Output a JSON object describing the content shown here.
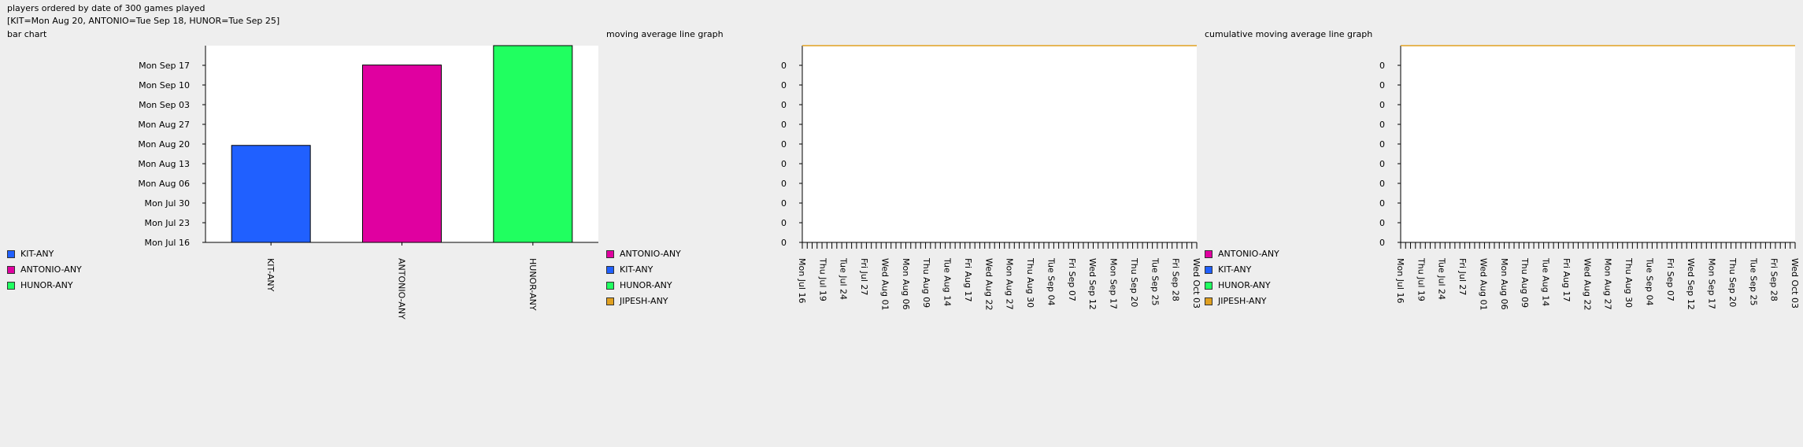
{
  "header": {
    "title": "players ordered by date of 300 games played",
    "subtitle": "[KIT=Mon Aug 20, ANTONIO=Tue Sep 18, HUNOR=Tue Sep 25]"
  },
  "colors": {
    "KIT-ANY": "#2060ff",
    "ANTONIO-ANY": "#e000a0",
    "HUNOR-ANY": "#20ff60",
    "JIPESH-ANY": "#e0a020"
  },
  "chart_data": [
    {
      "type": "bar",
      "title": "bar chart",
      "categories": [
        "KIT-ANY",
        "ANTONIO-ANY",
        "HUNOR-ANY"
      ],
      "values": [
        "2018-08-20",
        "2018-09-18",
        "2018-09-25"
      ],
      "y_ticks": [
        "Mon Jul 16",
        "Mon Jul 23",
        "Mon Jul 30",
        "Mon Aug 06",
        "Mon Aug 13",
        "Mon Aug 20",
        "Mon Aug 27",
        "Mon Sep 03",
        "Mon Sep 10",
        "Mon Sep 17"
      ],
      "ylim": [
        "2018-07-16",
        "2018-09-25"
      ],
      "legend": [
        "KIT-ANY",
        "ANTONIO-ANY",
        "HUNOR-ANY"
      ],
      "legend_placement": "left"
    },
    {
      "type": "line",
      "title": "moving average line graph",
      "y_ticks": [
        "0",
        "0",
        "0",
        "0",
        "0",
        "0",
        "0",
        "0",
        "0",
        "0"
      ],
      "x_ticks": [
        "Mon Jul 16",
        "Thu Jul 19",
        "Tue Jul 24",
        "Fri Jul 27",
        "Wed Aug 01",
        "Mon Aug 06",
        "Thu Aug 09",
        "Tue Aug 14",
        "Fri Aug 17",
        "Wed Aug 22",
        "Mon Aug 27",
        "Thu Aug 30",
        "Tue Sep 04",
        "Fri Sep 07",
        "Wed Sep 12",
        "Mon Sep 17",
        "Thu Sep 20",
        "Tue Sep 25",
        "Fri Sep 28",
        "Wed Oct 03"
      ],
      "series": [
        {
          "name": "ANTONIO-ANY",
          "values": []
        },
        {
          "name": "KIT-ANY",
          "values": []
        },
        {
          "name": "HUNOR-ANY",
          "values": []
        },
        {
          "name": "JIPESH-ANY",
          "values": [
            1,
            1
          ]
        }
      ],
      "legend": [
        "ANTONIO-ANY",
        "KIT-ANY",
        "HUNOR-ANY",
        "JIPESH-ANY"
      ],
      "legend_placement": "left"
    },
    {
      "type": "line",
      "title": "cumulative moving average line graph",
      "y_ticks": [
        "0",
        "0",
        "0",
        "0",
        "0",
        "0",
        "0",
        "0",
        "0",
        "0"
      ],
      "x_ticks": [
        "Mon Jul 16",
        "Thu Jul 19",
        "Tue Jul 24",
        "Fri Jul 27",
        "Wed Aug 01",
        "Mon Aug 06",
        "Thu Aug 09",
        "Tue Aug 14",
        "Fri Aug 17",
        "Wed Aug 22",
        "Mon Aug 27",
        "Thu Aug 30",
        "Tue Sep 04",
        "Fri Sep 07",
        "Wed Sep 12",
        "Mon Sep 17",
        "Thu Sep 20",
        "Tue Sep 25",
        "Fri Sep 28",
        "Wed Oct 03"
      ],
      "series": [
        {
          "name": "ANTONIO-ANY",
          "values": []
        },
        {
          "name": "KIT-ANY",
          "values": []
        },
        {
          "name": "HUNOR-ANY",
          "values": []
        },
        {
          "name": "JIPESH-ANY",
          "values": [
            1,
            1
          ]
        }
      ],
      "legend": [
        "ANTONIO-ANY",
        "KIT-ANY",
        "HUNOR-ANY",
        "JIPESH-ANY"
      ],
      "legend_placement": "left"
    }
  ]
}
